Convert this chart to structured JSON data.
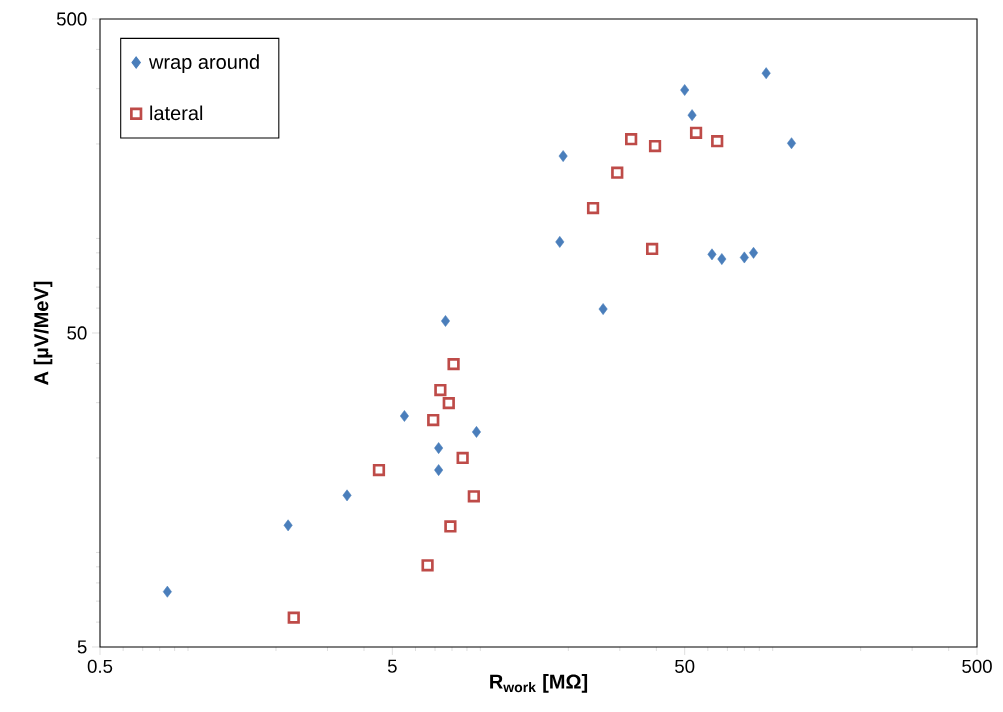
{
  "chart_data": {
    "type": "scatter",
    "xlabel": "R$_{work}$ [MΩ]",
    "ylabel": "A [µV/MeV]",
    "log": "xy",
    "xlim": [
      0.5,
      500
    ],
    "ylim": [
      5,
      500
    ],
    "xticks": [
      0.5,
      5,
      50,
      500
    ],
    "yticks": [
      5,
      50,
      500
    ],
    "grid": false,
    "legend": "top left",
    "series": [
      {
        "name": "wrap around",
        "color": "#4a7ebb",
        "marker": "diamond",
        "x": [
          0.85,
          2.2,
          3.5,
          5.5,
          7.2,
          7.2,
          7.6,
          9.7,
          18.7,
          19.2,
          26.3,
          50,
          53,
          62,
          67,
          80,
          86,
          95,
          116
        ],
        "values": [
          7.5,
          12.2,
          15.2,
          27.2,
          21.5,
          18.3,
          54.6,
          24.2,
          97.5,
          183,
          59.6,
          297,
          247,
          89,
          86,
          87,
          90,
          336,
          201
        ]
      },
      {
        "name": "lateral",
        "color": "#be4b48",
        "marker": "square",
        "x": [
          2.3,
          4.5,
          6.6,
          6.9,
          7.3,
          7.8,
          7.9,
          8.1,
          8.7,
          9.5,
          24.3,
          29.4,
          32.8,
          38.7,
          39.6,
          54.7,
          64.6
        ],
        "values": [
          6.2,
          18.3,
          9.1,
          26.4,
          32.9,
          29.9,
          12.1,
          39.8,
          20.0,
          15.1,
          125,
          162,
          207,
          92.6,
          197,
          217,
          204
        ]
      }
    ]
  }
}
